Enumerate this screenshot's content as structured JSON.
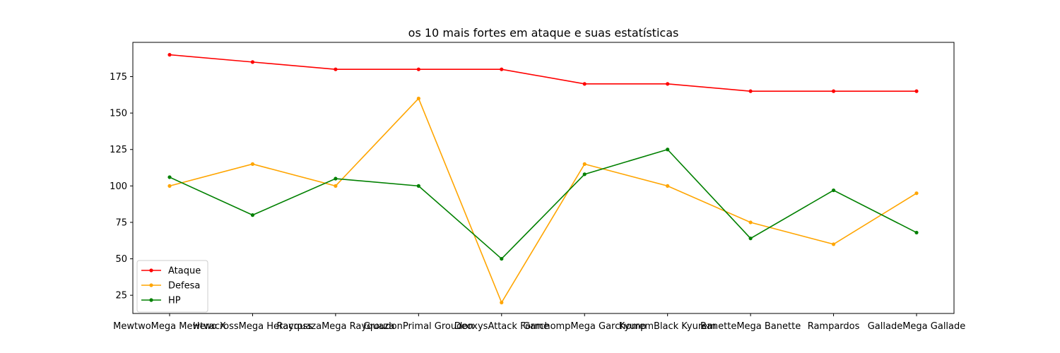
{
  "chart_data": {
    "type": "line",
    "title": "os 10 mais fortes em ataque e suas estatísticas",
    "xlabel": "",
    "ylabel": "",
    "categories": [
      "MewtwoMega Mewtwo X",
      "HeracrossMega Heracross",
      "RayquazaMega Rayquaza",
      "GroudonPrimal Groudon",
      "DeoxysAttack Forme",
      "GarchompMega Garchomp",
      "KyuremBlack Kyurem",
      "BanetteMega Banette",
      "Rampardos",
      "GalladeMega Gallade"
    ],
    "series": [
      {
        "name": "Ataque",
        "color": "#ff0000",
        "values": [
          190,
          185,
          180,
          180,
          180,
          170,
          170,
          165,
          165,
          165
        ]
      },
      {
        "name": "Defesa",
        "color": "#ffa500",
        "values": [
          100,
          115,
          100,
          160,
          20,
          115,
          100,
          75,
          60,
          95
        ]
      },
      {
        "name": "HP",
        "color": "#008000",
        "values": [
          106,
          80,
          105,
          100,
          50,
          108,
          125,
          64,
          97,
          68
        ]
      }
    ],
    "ylim": [
      12.5,
      198.5
    ],
    "yticks": [
      25,
      50,
      75,
      100,
      125,
      150,
      175
    ],
    "grid": false,
    "legend": "lower-left"
  }
}
